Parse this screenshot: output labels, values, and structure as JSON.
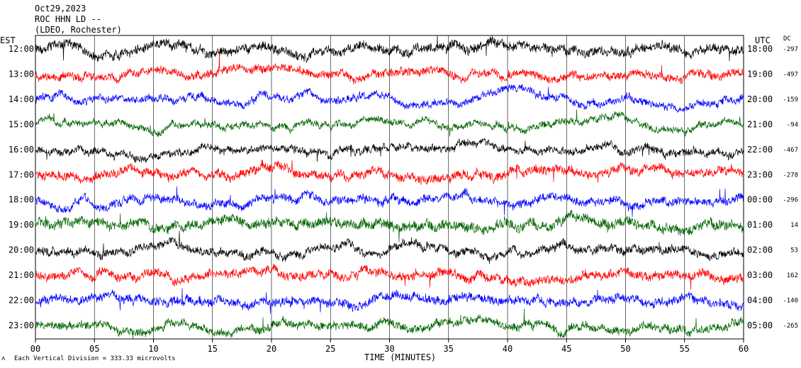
{
  "header": {
    "date": "Oct29,2023",
    "station": "ROC HHN LD --",
    "network": "(LDEO, Rochester)"
  },
  "left_axis_label": "EST",
  "right_axis_label": "UTC",
  "dc_label": "DC",
  "x_axis_label": "TIME (MINUTES)",
  "footer_note": "Each Vertical Division = 333.33 microvolts",
  "colors": {
    "black": "#000000",
    "red": "#ff0000",
    "blue": "#0000ff",
    "green": "#006400",
    "grid": "#000000"
  },
  "chart_data": {
    "type": "line",
    "title": "ROC HHN LD --",
    "xlabel": "TIME (MINUTES)",
    "ylabel": "",
    "xlim": [
      0,
      60
    ],
    "x_ticks": [
      "00",
      "05",
      "10",
      "15",
      "20",
      "25",
      "30",
      "35",
      "40",
      "45",
      "50",
      "55",
      "60"
    ],
    "grid": true,
    "series_colors": [
      "black",
      "red",
      "blue",
      "green",
      "black",
      "red",
      "blue",
      "green",
      "black",
      "red",
      "blue",
      "green"
    ],
    "rows": [
      {
        "est": "12:00",
        "utc": "18:00",
        "dc": "-297"
      },
      {
        "est": "13:00",
        "utc": "19:00",
        "dc": "-497"
      },
      {
        "est": "14:00",
        "utc": "20:00",
        "dc": "-159"
      },
      {
        "est": "15:00",
        "utc": "21:00",
        "dc": "-94"
      },
      {
        "est": "16:00",
        "utc": "22:00",
        "dc": "-467"
      },
      {
        "est": "17:00",
        "utc": "23:00",
        "dc": "-278"
      },
      {
        "est": "18:00",
        "utc": "00:00",
        "dc": "-296"
      },
      {
        "est": "19:00",
        "utc": "01:00",
        "dc": "14"
      },
      {
        "est": "20:00",
        "utc": "02:00",
        "dc": "53"
      },
      {
        "est": "21:00",
        "utc": "03:00",
        "dc": "162"
      },
      {
        "est": "22:00",
        "utc": "04:00",
        "dc": "-140"
      },
      {
        "est": "23:00",
        "utc": "05:00",
        "dc": "-265"
      }
    ]
  }
}
